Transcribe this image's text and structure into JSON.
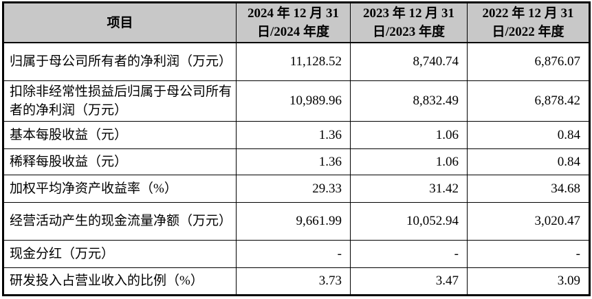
{
  "colors": {
    "header_bg": "#c8c8c8",
    "border": "#000000",
    "text": "#000000",
    "page_bg": "#ffffff"
  },
  "table": {
    "header": {
      "item_label": "项目",
      "col_2024": "2024 年 12 月 31 日/2024 年度",
      "col_2023": "2023 年 12 月 31 日/2023 年度",
      "col_2022": "2022 年 12 月 31 日/2022 年度"
    },
    "rows": [
      {
        "label": "归属于母公司所有者的净利润（万元）",
        "values": [
          "11,128.52",
          "8,740.74",
          "6,876.07"
        ]
      },
      {
        "label": "扣除非经常性损益后归属于母公司所有者的净利润（万元）",
        "values": [
          "10,989.96",
          "8,832.49",
          "6,878.42"
        ]
      },
      {
        "label": "基本每股收益（元）",
        "values": [
          "1.36",
          "1.06",
          "0.84"
        ]
      },
      {
        "label": "稀释每股收益（元）",
        "values": [
          "1.36",
          "1.06",
          "0.84"
        ]
      },
      {
        "label": "加权平均净资产收益率（%）",
        "values": [
          "29.33",
          "31.42",
          "34.68"
        ]
      },
      {
        "label": "经营活动产生的现金流量净额（万元）",
        "values": [
          "9,661.99",
          "10,052.94",
          "3,020.47"
        ]
      },
      {
        "label": "现金分红（万元）",
        "values": [
          "-",
          "-",
          "-"
        ]
      },
      {
        "label": "研发投入占营业收入的比例（%）",
        "values": [
          "3.73",
          "3.47",
          "3.09"
        ]
      }
    ]
  }
}
